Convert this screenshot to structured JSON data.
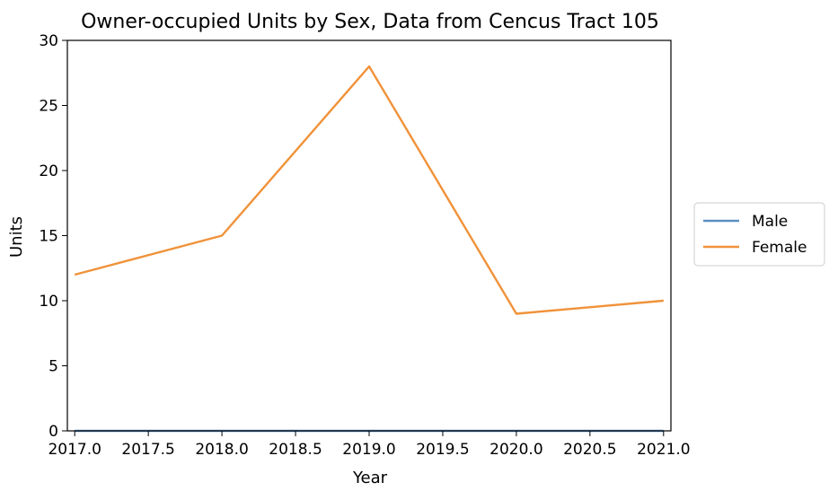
{
  "chart_data": {
    "type": "line",
    "title": "Owner-occupied Units by Sex, Data from Cencus Tract 105",
    "xlabel": "Year",
    "ylabel": "Units",
    "x": [
      2017,
      2018,
      2019,
      2020,
      2021
    ],
    "xlim": [
      2016.95,
      2021.05
    ],
    "ylim": [
      0,
      30
    ],
    "xticks": [
      "2017.0",
      "2017.5",
      "2018.0",
      "2018.5",
      "2019.0",
      "2019.5",
      "2020.0",
      "2020.5",
      "2021.0"
    ],
    "xtick_values": [
      2017.0,
      2017.5,
      2018.0,
      2018.5,
      2019.0,
      2019.5,
      2020.0,
      2020.5,
      2021.0
    ],
    "yticks": [
      "0",
      "5",
      "10",
      "15",
      "20",
      "25",
      "30"
    ],
    "ytick_values": [
      0,
      5,
      10,
      15,
      20,
      25,
      30
    ],
    "grid": false,
    "legend_position": "outside right",
    "series": [
      {
        "name": "Male",
        "values": [
          0,
          0,
          0,
          0,
          0
        ],
        "color": "#5b8fc4"
      },
      {
        "name": "Female",
        "values": [
          12,
          15,
          28,
          9,
          10
        ],
        "color": "#f0923a"
      }
    ]
  }
}
